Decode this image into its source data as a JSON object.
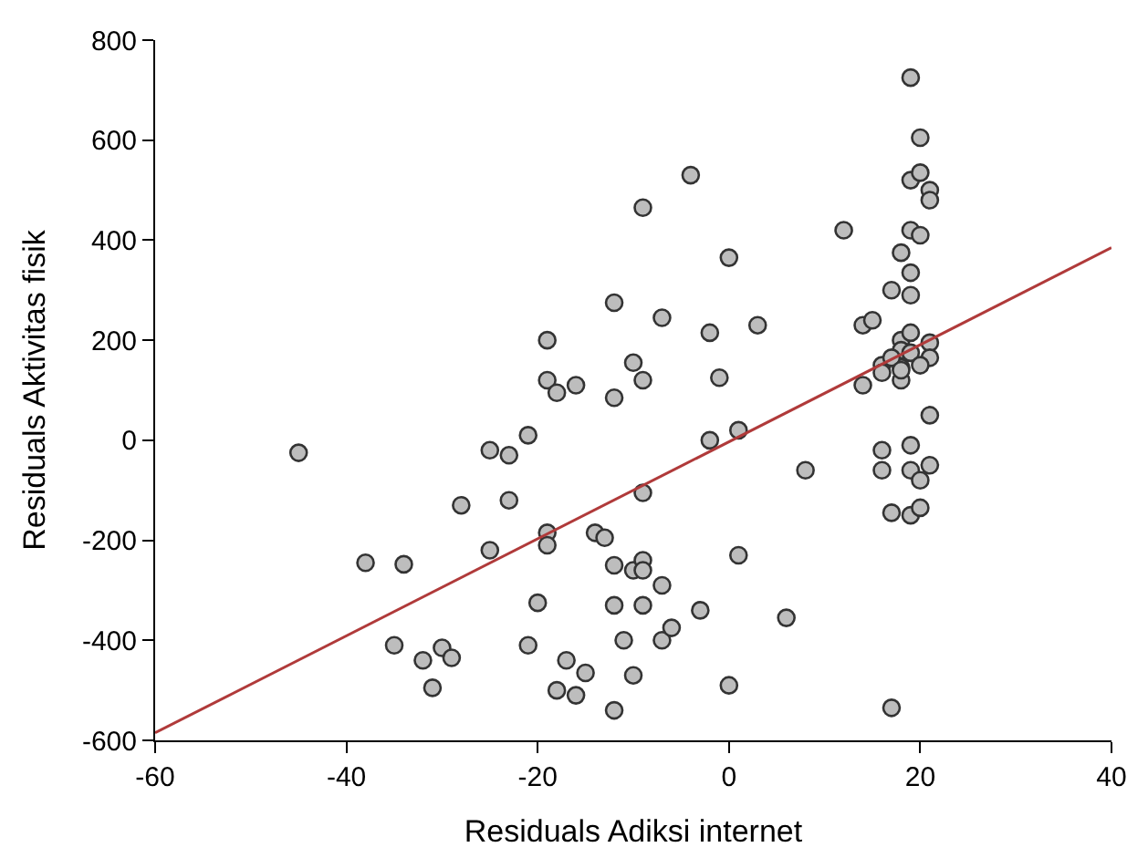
{
  "chart_data": {
    "type": "scatter",
    "xlabel": "Residuals Adiksi internet",
    "ylabel": "Residuals Aktivitas fisik",
    "xlim": [
      -60,
      40
    ],
    "xticks": [
      -60,
      -40,
      -20,
      0,
      20,
      40
    ],
    "ylim": [
      -600,
      800
    ],
    "yticks": [
      -600,
      -400,
      -200,
      0,
      200,
      400,
      600,
      800
    ],
    "marker": "circle",
    "series": [
      {
        "color": "#bdbdbd",
        "x": [
          -45,
          -38,
          -34,
          -35,
          -32,
          -31,
          -30,
          -29,
          -28,
          -25,
          -25,
          -23,
          -23,
          -21,
          -21,
          -20,
          -19,
          -19,
          -19,
          -19,
          -18,
          -18,
          -17,
          -16,
          -16,
          -15,
          -14,
          -13,
          -12,
          -12,
          -12,
          -12,
          -12,
          -11,
          -10,
          -10,
          -10,
          -9,
          -9,
          -9,
          -9,
          -9,
          -9,
          -7,
          -7,
          -7,
          -6,
          -4,
          -3,
          -2,
          -2,
          -1,
          0,
          0,
          1,
          1,
          3,
          6,
          8,
          12,
          14,
          15,
          16,
          16,
          16,
          16,
          14,
          17,
          17,
          17,
          18,
          18,
          18,
          18,
          18,
          19,
          19,
          19,
          19,
          19,
          19,
          19,
          19,
          19,
          19,
          20,
          20,
          20,
          20,
          20,
          21,
          21,
          21,
          21,
          21,
          21,
          17,
          20,
          18
        ],
        "values": [
          -25,
          -245,
          -248,
          -410,
          -440,
          -495,
          -415,
          -435,
          -130,
          -20,
          -220,
          -30,
          -120,
          10,
          -410,
          -325,
          200,
          120,
          -185,
          -210,
          95,
          -500,
          -440,
          110,
          -510,
          -465,
          -185,
          -195,
          275,
          85,
          -250,
          -330,
          -540,
          -400,
          155,
          -470,
          -260,
          465,
          120,
          -105,
          -240,
          -260,
          -330,
          245,
          -290,
          -400,
          -375,
          530,
          -340,
          215,
          0,
          125,
          365,
          -490,
          20,
          -230,
          230,
          -355,
          -60,
          420,
          230,
          240,
          150,
          135,
          -20,
          -60,
          110,
          -145,
          -535,
          300,
          375,
          200,
          180,
          145,
          120,
          725,
          520,
          420,
          335,
          290,
          215,
          175,
          -10,
          -60,
          -150,
          605,
          535,
          410,
          -80,
          -135,
          500,
          480,
          195,
          165,
          50,
          -50,
          165,
          150,
          140
        ]
      },
      {
        "type": "line",
        "color": "#b03a3a",
        "marker": "none",
        "x": [
          -60,
          40
        ],
        "values": [
          -585,
          385
        ]
      }
    ]
  }
}
